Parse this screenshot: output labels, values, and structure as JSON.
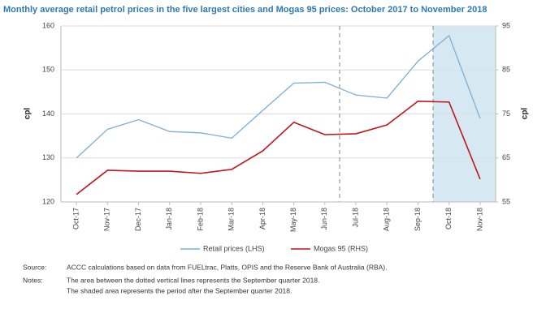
{
  "chart_data": {
    "type": "line",
    "title": "Monthly average retail petrol prices in the five largest cities and Mogas 95 prices: October 2017 to November 2018",
    "ylabel": "cpl",
    "y2label": "cpl",
    "categories": [
      "Oct-17",
      "Nov-17",
      "Dec-17",
      "Jan-18",
      "Feb-18",
      "Mar-18",
      "Apr-18",
      "May-18",
      "Jun-18",
      "Jul-18",
      "Aug-18",
      "Sep-18",
      "Oct-18",
      "Nov-18"
    ],
    "series": [
      {
        "name": "Retail prices (LHS)",
        "color": "#7aaed6",
        "values": [
          130,
          136.5,
          138.7,
          136,
          135.7,
          134.5,
          140.8,
          147,
          147.2,
          144.3,
          143.6,
          152,
          157.8,
          139
        ]
      },
      {
        "name": "Mogas 95 (RHS)",
        "color": "#c0161c",
        "axis": "y2",
        "values": [
          56.7,
          62.2,
          62,
          62,
          61.5,
          62.4,
          66.6,
          73.1,
          70.3,
          70.5,
          72.5,
          77.9,
          77.7,
          60.2
        ]
      }
    ],
    "ylim": [
      120,
      160
    ],
    "yticks": [
      120,
      130,
      140,
      150,
      160
    ],
    "y2lim": [
      55,
      95
    ],
    "y2ticks": [
      55,
      65,
      75,
      85,
      95
    ],
    "grid": true,
    "legend": "bottom"
  },
  "notes": {
    "source_label": "Source:",
    "source": "ACCC calculations based on data from FUELtrac, Platts, OPIS and the Reserve Bank of Australia (RBA).",
    "notes_label": "Notes:",
    "lines": [
      "The area between the dotted vertical lines represents the September quarter 2018.",
      "The shaded area represents the period after the September quarter 2018."
    ]
  }
}
